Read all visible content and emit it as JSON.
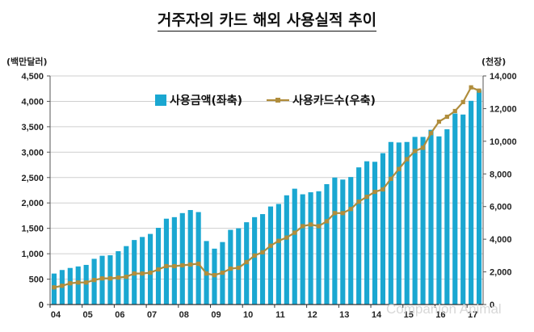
{
  "chart_data": {
    "type": "bar+line",
    "title": "거주자의 카드 해외 사용실적 추이",
    "left_unit": "(백만달러)",
    "right_unit": "(천장)",
    "x_tick_labels": [
      "04",
      "05",
      "06",
      "07",
      "08",
      "09",
      "10",
      "11",
      "12",
      "13",
      "14",
      "15",
      "16",
      "17"
    ],
    "left_axis": {
      "min": 0,
      "max": 4500,
      "step": 500,
      "ticks": [
        "0",
        "500",
        "1,000",
        "1,500",
        "2,000",
        "2,500",
        "3,000",
        "3,500",
        "4,000",
        "4,500"
      ]
    },
    "right_axis": {
      "min": 0,
      "max": 14000,
      "step": 2000,
      "ticks": [
        "0",
        "2,000",
        "4,000",
        "6,000",
        "8,000",
        "10,000",
        "12,000",
        "14,000"
      ]
    },
    "periods_per_year": 4,
    "series": [
      {
        "name": "사용금액(좌축)",
        "type": "bar",
        "axis": "left",
        "color": "#1aa7d1",
        "values": [
          610,
          680,
          720,
          750,
          780,
          900,
          960,
          970,
          1050,
          1150,
          1270,
          1330,
          1390,
          1510,
          1690,
          1720,
          1800,
          1860,
          1820,
          1250,
          1100,
          1230,
          1470,
          1500,
          1620,
          1720,
          1780,
          1930,
          1980,
          2150,
          2280,
          2170,
          2210,
          2230,
          2370,
          2500,
          2460,
          2510,
          2700,
          2820,
          2810,
          2980,
          3200,
          3190,
          3200,
          3300,
          3300,
          3440,
          3310,
          3450,
          3760,
          3740,
          4010,
          4220
        ]
      },
      {
        "name": "사용카드수(우축)",
        "type": "line",
        "axis": "right",
        "color": "#b08d3c",
        "values": [
          1050,
          1150,
          1300,
          1350,
          1350,
          1500,
          1600,
          1600,
          1650,
          1700,
          1900,
          1900,
          1950,
          2150,
          2350,
          2350,
          2400,
          2450,
          2500,
          1900,
          1800,
          1950,
          2200,
          2250,
          2600,
          3000,
          3200,
          3600,
          3900,
          4100,
          4400,
          4800,
          4900,
          4800,
          5100,
          5600,
          5600,
          5850,
          6300,
          6600,
          6900,
          7050,
          7700,
          8300,
          8900,
          9400,
          9600,
          10500,
          11200,
          11500,
          11850,
          12400,
          13300,
          13100
        ]
      }
    ],
    "legend": {
      "placement": "top-left"
    }
  },
  "watermark": "Companion Animal"
}
